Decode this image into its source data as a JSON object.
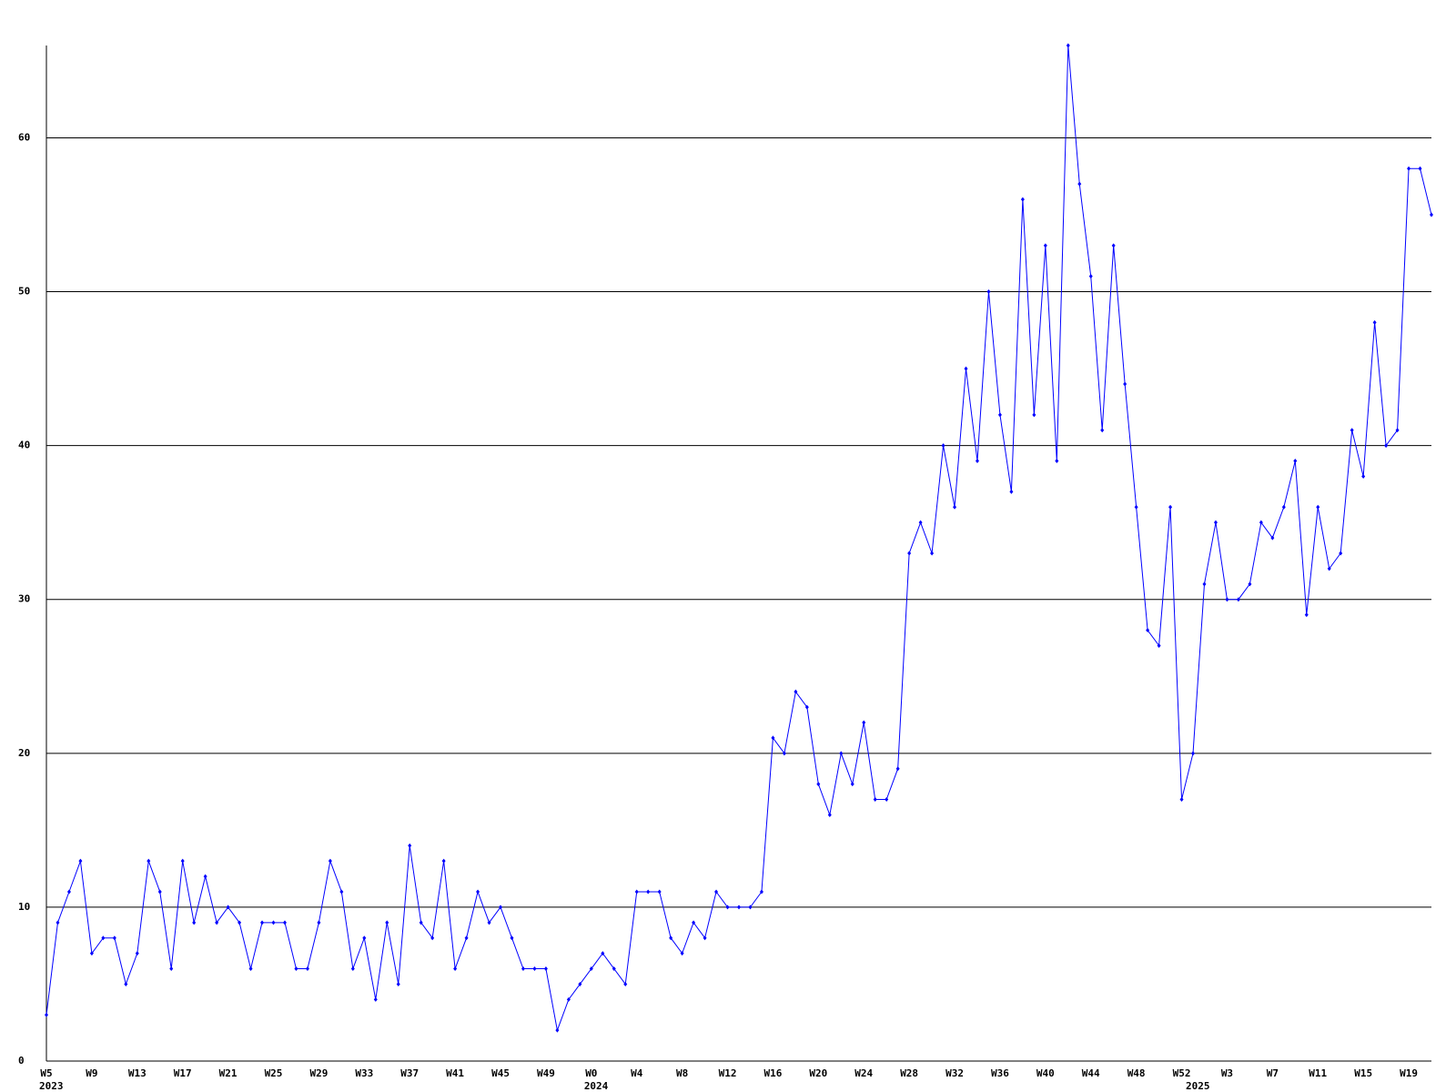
{
  "chart_data": {
    "type": "line",
    "categories": [
      "W5",
      null,
      null,
      null,
      "W9",
      null,
      null,
      null,
      "W13",
      null,
      null,
      null,
      "W17",
      null,
      null,
      null,
      "W21",
      null,
      null,
      null,
      "W25",
      null,
      null,
      null,
      "W29",
      null,
      null,
      null,
      "W33",
      null,
      null,
      null,
      "W37",
      null,
      null,
      null,
      "W41",
      null,
      null,
      null,
      "W45",
      null,
      null,
      null,
      "W49",
      null,
      null,
      null,
      "W0",
      null,
      null,
      null,
      "W4",
      null,
      null,
      null,
      "W8",
      null,
      null,
      null,
      "W12",
      null,
      null,
      null,
      "W16",
      null,
      null,
      null,
      "W20",
      null,
      null,
      null,
      "W24",
      null,
      null,
      null,
      "W28",
      null,
      null,
      null,
      "W32",
      null,
      null,
      null,
      "W36",
      null,
      null,
      null,
      "W40",
      null,
      null,
      null,
      "W44",
      null,
      null,
      null,
      "W48",
      null,
      null,
      null,
      "W52",
      null,
      null,
      null,
      "W3",
      null,
      null,
      null,
      "W7",
      null,
      null,
      null,
      "W11",
      null,
      null,
      null,
      "W15",
      null,
      null,
      null,
      "W19",
      null,
      null
    ],
    "x_groups": [
      {
        "label": "2023",
        "start": 0
      },
      {
        "label": "2024",
        "start": 48
      },
      {
        "label": "2025",
        "start": 101
      }
    ],
    "series": [
      {
        "color": "#0000ff",
        "values": [
          3,
          9,
          11,
          13,
          7,
          8,
          8,
          5,
          7,
          13,
          11,
          6,
          13,
          9,
          12,
          9,
          10,
          9,
          6,
          9,
          9,
          9,
          6,
          6,
          9,
          13,
          11,
          6,
          8,
          4,
          9,
          5,
          14,
          9,
          8,
          13,
          6,
          8,
          11,
          9,
          10,
          8,
          6,
          6,
          6,
          2,
          4,
          5,
          6,
          7,
          6,
          5,
          11,
          11,
          11,
          8,
          7,
          9,
          8,
          11,
          10,
          10,
          10,
          11,
          21,
          20,
          24,
          23,
          18,
          16,
          20,
          18,
          22,
          17,
          17,
          19,
          33,
          35,
          33,
          40,
          36,
          45,
          39,
          50,
          42,
          37,
          56,
          42,
          53,
          39,
          66,
          57,
          51,
          41,
          53,
          44,
          36,
          28,
          27,
          36,
          17,
          20,
          31,
          35,
          30,
          30,
          31,
          35,
          34,
          36,
          39,
          29,
          36,
          32,
          33,
          41,
          38,
          48,
          40,
          41,
          58,
          58,
          55
        ]
      }
    ],
    "ylim": [
      0,
      66
    ],
    "yticks": [
      0,
      10,
      20,
      30,
      40,
      50,
      60
    ],
    "grid": true
  }
}
